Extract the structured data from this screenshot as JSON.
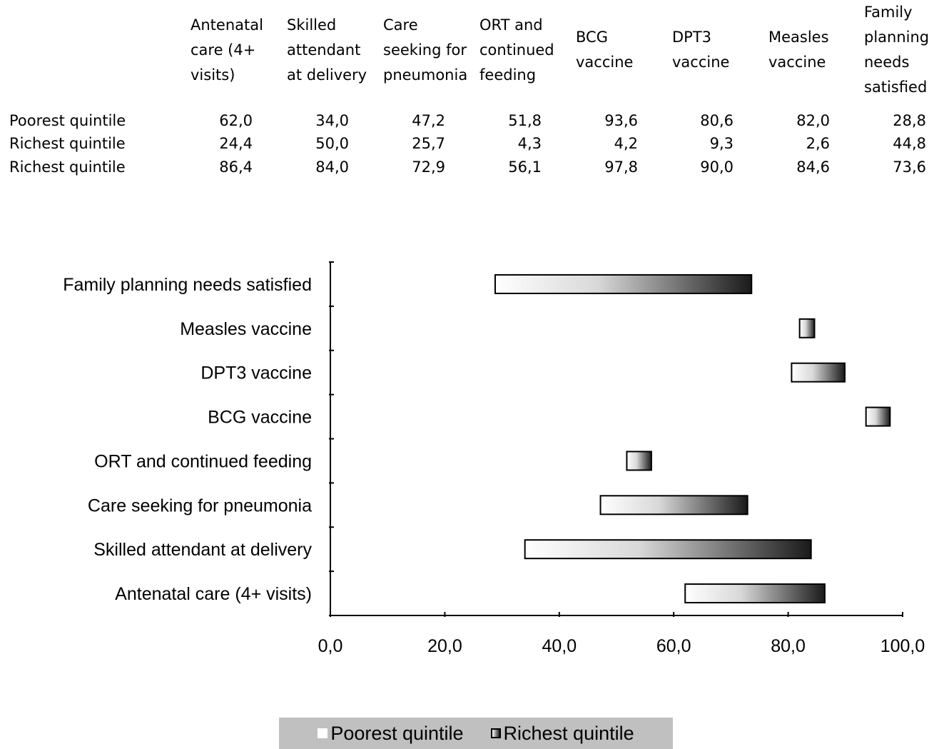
{
  "table": {
    "columns": [
      "Antenatal\ncare (4+\nvisits)",
      "Skilled\nattendant\nat delivery",
      "Care\nseeking for\npneumonia",
      "ORT and\ncontinued\nfeeding",
      "BCG\nvaccine",
      "DPT3\nvaccine",
      "Measles\nvaccine",
      "Family\nplanning\nneeds\nsatisfied"
    ],
    "rows": [
      {
        "label": "Poorest quintile",
        "values": [
          "62,0",
          "34,0",
          "47,2",
          "51,8",
          "93,6",
          "80,6",
          "82,0",
          "28,8"
        ]
      },
      {
        "label": "Richest quintile",
        "values": [
          "24,4",
          "50,0",
          "25,7",
          "4,3",
          "4,2",
          "9,3",
          "2,6",
          "44,8"
        ]
      },
      {
        "label": "Richest quintile",
        "values": [
          "86,4",
          "84,0",
          "72,9",
          "56,1",
          "97,8",
          "90,0",
          "84,6",
          "73,6"
        ]
      }
    ]
  },
  "chart_data": {
    "type": "bar",
    "orientation": "horizontal",
    "stacked": true,
    "categories": [
      "Antenatal care (4+ visits)",
      "Skilled attendant at delivery",
      "Care seeking for pneumonia",
      "ORT and continued feeding",
      "BCG vaccine",
      "DPT3 vaccine",
      "Measles vaccine",
      "Family planning needs satisfied"
    ],
    "series": [
      {
        "name": "Poorest quintile",
        "values": [
          62.0,
          34.0,
          47.2,
          51.8,
          93.6,
          80.6,
          82.0,
          28.8
        ],
        "color": "#ffffff"
      },
      {
        "name": "Richest quintile",
        "values": [
          24.4,
          50.0,
          25.7,
          4.3,
          4.2,
          9.3,
          2.6,
          44.8
        ],
        "color_from": "#ffffff",
        "color_to": "#1a1a1a"
      }
    ],
    "xlim": [
      0,
      100
    ],
    "xticks": [
      "0,0",
      "20,0",
      "40,0",
      "60,0",
      "80,0",
      "100,0"
    ],
    "grid": false,
    "legend": {
      "position": "bottom",
      "labels": [
        "Poorest quintile",
        "Richest quintile"
      ],
      "background": "#c0c0c0"
    }
  }
}
